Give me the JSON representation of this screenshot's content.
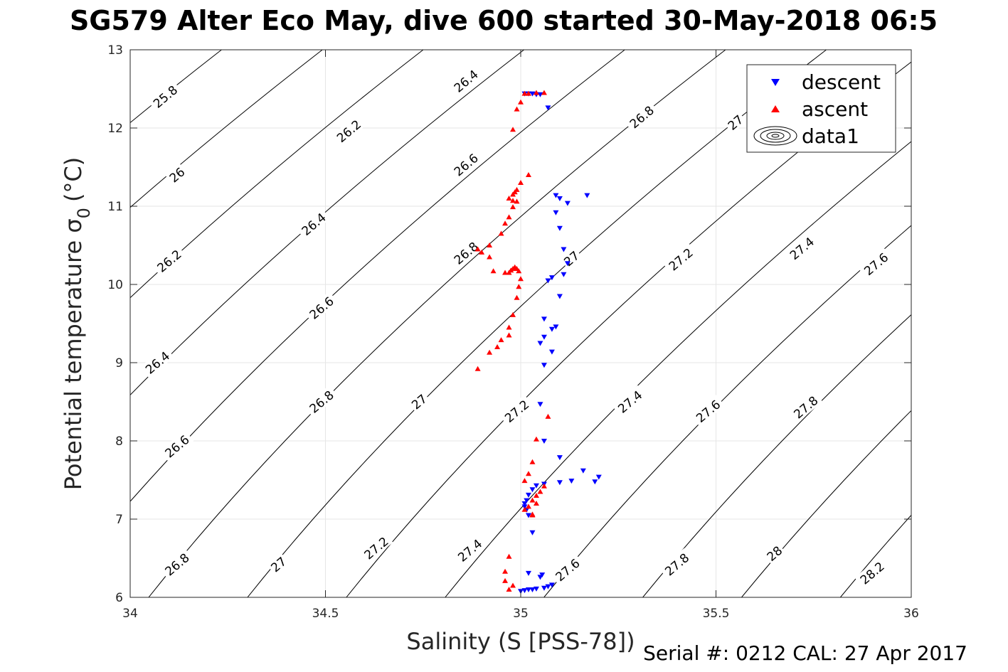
{
  "chart_data": {
    "type": "scatter",
    "title": "SG579 Alter Eco May, dive 600 started 30-May-2018 06:5",
    "xlabel": "Salinity (S [PSS-78])",
    "ylabel_main": "Potential temperature σ",
    "ylabel_sub": "0",
    "ylabel_unit": "(°C)",
    "footer": "Serial #: 0212  CAL: 27 Apr 2017",
    "xlim": [
      34,
      36
    ],
    "ylim": [
      6,
      13
    ],
    "xticks": [
      34,
      34.5,
      35,
      35.5,
      36
    ],
    "xtick_labels": [
      "34",
      "34.5",
      "35",
      "35.5",
      "36"
    ],
    "yticks": [
      6,
      7,
      8,
      9,
      10,
      11,
      12,
      13
    ],
    "ytick_labels": [
      "6",
      "7",
      "8",
      "9",
      "10",
      "11",
      "12",
      "13"
    ],
    "grid": true,
    "legend_position": "top-right",
    "legend": [
      {
        "label": "descent",
        "color": "#0000ff",
        "marker": "triangle-down"
      },
      {
        "label": "ascent",
        "color": "#ff0000",
        "marker": "triangle-up"
      },
      {
        "label": "data1",
        "color": "#000000",
        "marker": "contour"
      }
    ],
    "contours": {
      "name": "data1",
      "levels": [
        25.8,
        26,
        26.2,
        26.4,
        26.6,
        26.8,
        27,
        27.2,
        27.4,
        27.6,
        27.8,
        28,
        28.2
      ],
      "labels": [
        {
          "text": "25.8",
          "x": 34.09,
          "y": 12.4
        },
        {
          "text": "26",
          "x": 34.12,
          "y": 11.4
        },
        {
          "text": "26.2",
          "x": 34.1,
          "y": 10.3
        },
        {
          "text": "26.4",
          "x": 34.07,
          "y": 9.0
        },
        {
          "text": "26.6",
          "x": 34.12,
          "y": 7.93
        },
        {
          "text": "26.8",
          "x": 34.12,
          "y": 6.42
        },
        {
          "text": "26.2",
          "x": 34.56,
          "y": 11.96
        },
        {
          "text": "26.4",
          "x": 34.47,
          "y": 10.77
        },
        {
          "text": "26.6",
          "x": 34.49,
          "y": 9.7
        },
        {
          "text": "26.8",
          "x": 34.49,
          "y": 8.5
        },
        {
          "text": "27",
          "x": 34.38,
          "y": 6.42
        },
        {
          "text": "26.4",
          "x": 34.86,
          "y": 12.6
        },
        {
          "text": "26.6",
          "x": 34.86,
          "y": 11.53
        },
        {
          "text": "26.8",
          "x": 34.86,
          "y": 10.4
        },
        {
          "text": "27",
          "x": 34.74,
          "y": 8.5
        },
        {
          "text": "27.2",
          "x": 34.63,
          "y": 6.63
        },
        {
          "text": "27.2",
          "x": 34.99,
          "y": 8.38
        },
        {
          "text": "27.4",
          "x": 34.87,
          "y": 6.6
        },
        {
          "text": "26.8",
          "x": 35.31,
          "y": 12.14
        },
        {
          "text": "27",
          "x": 35.13,
          "y": 10.33
        },
        {
          "text": "27.4",
          "x": 35.28,
          "y": 8.5
        },
        {
          "text": "27.6",
          "x": 35.12,
          "y": 6.35
        },
        {
          "text": "27",
          "x": 35.55,
          "y": 12.07
        },
        {
          "text": "27.2",
          "x": 35.41,
          "y": 10.32
        },
        {
          "text": "27.6",
          "x": 35.48,
          "y": 8.38
        },
        {
          "text": "27.8",
          "x": 35.4,
          "y": 6.42
        },
        {
          "text": "27.4",
          "x": 35.72,
          "y": 10.46
        },
        {
          "text": "27.6",
          "x": 35.91,
          "y": 10.26
        },
        {
          "text": "27.8",
          "x": 35.73,
          "y": 8.43
        },
        {
          "text": "28",
          "x": 35.65,
          "y": 6.56
        },
        {
          "text": "28.2",
          "x": 35.9,
          "y": 6.31
        }
      ]
    },
    "series": [
      {
        "name": "descent",
        "color": "#0000ff",
        "marker": "triangle-down",
        "x": [
          35.05,
          35.04,
          35.03,
          35.02,
          35.01,
          35.07,
          35.17,
          35.09,
          35.1,
          35.12,
          35.09,
          35.1,
          35.11,
          35.12,
          35.11,
          35.08,
          35.07,
          35.1,
          35.06,
          35.09,
          35.08,
          35.06,
          35.05,
          35.08,
          35.06,
          35.05,
          35.06,
          35.1,
          35.16,
          35.2,
          35.19,
          35.13,
          35.1,
          35.06,
          35.04,
          35.03,
          35.02,
          35.015,
          35.01,
          35.01,
          35.015,
          35.02,
          35.03,
          35.02,
          35.055,
          35.05,
          35.08,
          35.07,
          35.06,
          35.04,
          35.03,
          35.02,
          35.01,
          35.0
        ],
        "y": [
          12.43,
          12.43,
          12.44,
          12.44,
          12.44,
          12.26,
          11.14,
          11.14,
          11.1,
          11.04,
          10.92,
          10.72,
          10.45,
          10.27,
          10.13,
          10.09,
          10.05,
          9.85,
          9.56,
          9.46,
          9.43,
          9.33,
          9.25,
          9.14,
          8.97,
          8.47,
          8.0,
          7.79,
          7.62,
          7.54,
          7.48,
          7.49,
          7.47,
          7.45,
          7.43,
          7.38,
          7.31,
          7.24,
          7.2,
          7.16,
          7.12,
          7.05,
          6.83,
          6.31,
          6.29,
          6.26,
          6.16,
          6.14,
          6.12,
          6.11,
          6.1,
          6.1,
          6.09,
          6.08
        ]
      },
      {
        "name": "ascent",
        "color": "#ff0000",
        "marker": "triangle-up",
        "x": [
          34.89,
          34.92,
          34.94,
          34.95,
          34.97,
          34.97,
          34.98,
          34.99,
          34.995,
          35.0,
          34.995,
          34.99,
          34.985,
          34.98,
          34.975,
          34.97,
          34.96,
          34.93,
          34.92,
          34.9,
          34.89,
          34.92,
          34.95,
          34.96,
          34.97,
          34.98,
          34.99,
          34.98,
          34.97,
          34.98,
          34.985,
          34.99,
          35.0,
          35.02,
          35.03,
          35.03,
          35.01,
          35.02,
          35.04,
          35.03,
          35.04,
          35.05,
          35.06,
          35.01,
          35.02,
          35.03,
          35.04,
          35.07,
          34.97,
          34.98,
          34.96,
          34.96,
          34.97,
          34.98,
          34.99,
          35.0,
          35.01,
          35.02,
          35.04,
          35.06
        ],
        "y": [
          8.92,
          9.13,
          9.2,
          9.29,
          9.35,
          9.45,
          9.61,
          9.83,
          9.97,
          10.07,
          10.17,
          10.2,
          10.22,
          10.2,
          10.18,
          10.15,
          10.15,
          10.17,
          10.35,
          10.41,
          10.45,
          10.5,
          10.65,
          10.78,
          10.86,
          10.99,
          11.06,
          11.07,
          11.1,
          11.15,
          11.18,
          11.21,
          11.3,
          11.4,
          7.05,
          7.06,
          7.12,
          7.16,
          7.2,
          7.24,
          7.3,
          7.35,
          7.42,
          7.49,
          7.58,
          7.73,
          8.02,
          8.31,
          6.1,
          6.15,
          6.21,
          6.33,
          6.52,
          11.98,
          12.24,
          12.33,
          12.44,
          12.44,
          12.45,
          12.45
        ]
      }
    ]
  }
}
